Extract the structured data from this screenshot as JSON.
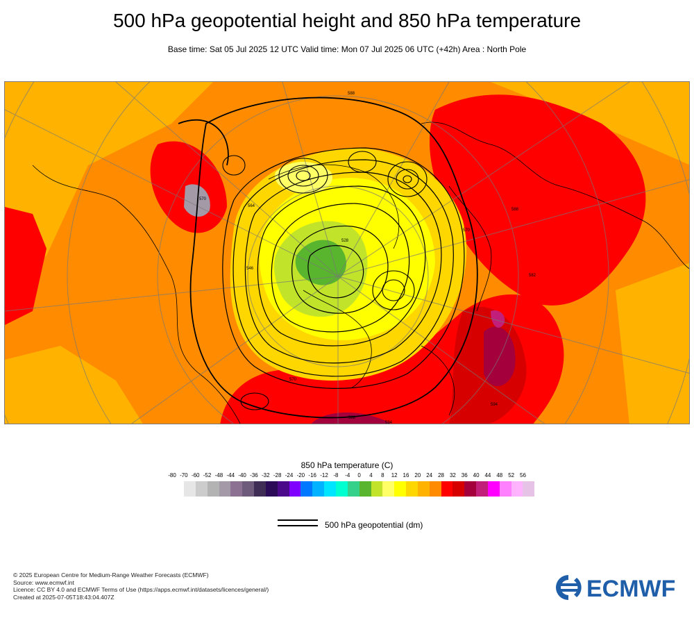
{
  "title": "500 hPa geopotential height and 850 hPa temperature",
  "subtitle": "Base time: Sat 05 Jul 2025 12 UTC Valid time: Mon 07 Jul 2025 06 UTC (+42h) Area : North Pole",
  "map": {
    "region": "North Pole",
    "contour_labels": [
      "546",
      "552",
      "558",
      "564",
      "570",
      "576",
      "582",
      "588",
      "594",
      "540",
      "534",
      "528"
    ],
    "high_labels": [
      "594",
      "594",
      "588",
      "582",
      "582",
      "588"
    ],
    "low_labels": [
      "534",
      "540",
      "546",
      "528",
      "534",
      "540"
    ]
  },
  "colorbar": {
    "title": "850 hPa temperature (C)",
    "labels": [
      "-80",
      "-70",
      "-60",
      "-52",
      "-48",
      "-44",
      "-40",
      "-36",
      "-32",
      "-28",
      "-24",
      "-20",
      "-16",
      "-12",
      "-8",
      "-4",
      "0",
      "4",
      "8",
      "12",
      "16",
      "20",
      "24",
      "28",
      "32",
      "36",
      "40",
      "44",
      "48",
      "52",
      "56"
    ],
    "colors": [
      "#e6e6e6",
      "#cccccc",
      "#b3b3b3",
      "#a399a7",
      "#8d7192",
      "#6e5a7a",
      "#3f2d55",
      "#2b0b57",
      "#4b0a8a",
      "#7f00ff",
      "#0077ff",
      "#00b2ff",
      "#00e5ff",
      "#00ffd0",
      "#35d08a",
      "#5ab52e",
      "#c1e32a",
      "#ffff66",
      "#ffff00",
      "#ffd700",
      "#ffb300",
      "#ff8c00",
      "#ff0000",
      "#d60000",
      "#a3003c",
      "#c21f7a",
      "#ff00ff",
      "#ff80ff",
      "#ffb3ff",
      "#e6c3e6",
      "#e0e0e0"
    ]
  },
  "legend": {
    "label": "500 hPa geopotential (dm)"
  },
  "footer": {
    "copyright": "© 2025 European Centre for Medium-Range Weather Forecasts (ECMWF)",
    "source": "Source: www.ecmwf.int",
    "licence": "Licence: CC BY 4.0 and ECMWF Terms of Use (https://apps.ecmwf.int/datasets/licences/general/)",
    "created": "Created at 2025-07-05T18:43:04.407Z"
  },
  "logo": {
    "text": "ECMWF",
    "color": "#1f5ea8"
  }
}
